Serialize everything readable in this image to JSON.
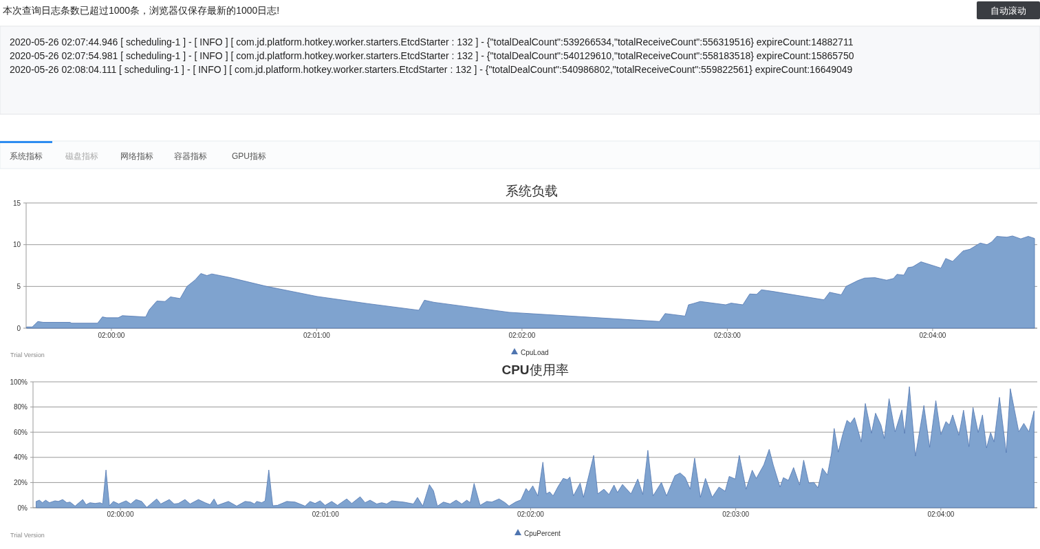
{
  "chart_data": [
    {
      "type": "other",
      "title": "本次查询日志条数已超过1000条，浏览器仅保存最新的1000日志!",
      "annotations": [
        "2020-05-26 02:07:44.946 [ scheduling-1 ] - [ INFO ] [ com.jd.platform.hotkey.worker.starters.EtcdStarter : 132 ] - {\"totalDealCount\":539266534,\"totalReceiveCount\":556319516} expireCount:14882711",
        "2020-05-26 02:07:54.981 [ scheduling-1 ] - [ INFO ] [ com.jd.platform.hotkey.worker.starters.EtcdStarter : 132 ] - {\"totalDealCount\":540129610,\"totalReceiveCount\":558183518} expireCount:15865750",
        "2020-05-26 02:08:04.111 [ scheduling-1 ] - [ INFO ] [ com.jd.platform.hotkey.worker.starters.EtcdStarter : 132 ] - {\"totalDealCount\":540986802,\"totalReceiveCount\":559822561} expireCount:16649049",
        "自动滚动",
        "系统指标",
        "磁盘指标",
        "网络指标",
        "容器指标",
        "GPU指标"
      ]
    },
    {
      "type": "area",
      "title": "系统负载",
      "x": [
        1.99312,
        1.99358,
        1.99403,
        1.99447,
        1.99665,
        1.99676,
        1.99888,
        1.99927,
        1.99961,
        2.00056,
        2.00089,
        2.00262,
        2.00279,
        2.00307,
        2.00369,
        2.00436,
        2.0048,
        2.00558,
        2.00614,
        2.00681,
        2.00726,
        2.00776,
        2.00815,
        2.00966,
        2.01262,
        2.0167,
        2.02077,
        2.02496,
        2.02541,
        2.02619,
        2.03228,
        2.0445,
        2.04495,
        2.04657,
        2.04685,
        2.04724,
        2.0478,
        2.04987,
        2.05031,
        2.05126,
        2.05182,
        2.05238,
        2.05277,
        2.05372,
        2.05785,
        2.0583,
        2.05925,
        2.05964,
        2.06059,
        2.06114,
        2.06198,
        2.06293,
        2.06349,
        2.06377,
        2.06433,
        2.06466,
        2.06505,
        2.06572,
        2.06734,
        2.06773,
        2.06829,
        2.06913,
        2.06969,
        2.07053,
        2.07108,
        2.07148,
        2.07187,
        2.0727,
        2.07315,
        2.07382,
        2.07443,
        2.07494
      ],
      "series": [
        {
          "name": "CpuLoad",
          "color": "#7fa3cf",
          "values": [
            0.15,
            0.15,
            0.8,
            0.7,
            0.7,
            0.6,
            0.6,
            1.35,
            1.25,
            1.25,
            1.5,
            1.35,
            1.35,
            2.2,
            3.25,
            3.2,
            3.75,
            3.55,
            5.0,
            5.8,
            6.55,
            6.3,
            6.5,
            6.05,
            5.0,
            3.8,
            2.95,
            2.15,
            3.35,
            3.1,
            1.9,
            0.8,
            1.75,
            1.45,
            2.8,
            2.95,
            3.2,
            2.8,
            3.0,
            2.8,
            4.1,
            4.05,
            4.6,
            4.4,
            3.4,
            4.3,
            4.0,
            5.0,
            5.7,
            6.0,
            6.05,
            5.75,
            5.95,
            6.45,
            6.35,
            7.25,
            7.35,
            7.95,
            7.2,
            8.35,
            8.0,
            9.25,
            9.45,
            10.2,
            10.0,
            10.35,
            11.0,
            10.9,
            11.05,
            10.7,
            11.0,
            10.75
          ]
        }
      ],
      "xlim": [
        1.99308,
        2.07516
      ],
      "ylim": [
        0,
        15
      ],
      "xticks": [
        {
          "value": 2,
          "label": "02:00:00"
        },
        {
          "value": 2.016667,
          "label": "02:01:00"
        },
        {
          "value": 2.033333,
          "label": "02:02:00"
        },
        {
          "value": 2.05,
          "label": "02:03:00"
        },
        {
          "value": 2.066667,
          "label": "02:04:00"
        }
      ],
      "yticks": [
        0,
        5,
        10,
        15
      ],
      "grid": "y",
      "legend": "bottom",
      "annotations": [
        "Trial Version"
      ]
    },
    {
      "type": "area",
      "title": "**CPU**使用率",
      "x": [
        1.99315,
        1.99342,
        1.99366,
        1.99393,
        1.99423,
        1.99469,
        1.99496,
        1.99531,
        1.99564,
        1.99591,
        1.99632,
        1.99694,
        1.99721,
        1.99753,
        1.99794,
        1.99835,
        1.99856,
        1.99883,
        1.99911,
        1.99943,
        1.99986,
        2.00046,
        2.00084,
        2.00127,
        2.00173,
        2.00214,
        2.00295,
        2.00328,
        2.00398,
        2.00436,
        2.00471,
        2.00525,
        2.00566,
        2.00634,
        2.00688,
        2.00729,
        2.00761,
        2.00788,
        2.00878,
        2.00945,
        2.01013,
        2.01059,
        2.01089,
        2.01108,
        2.01149,
        2.01176,
        2.01206,
        2.01238,
        2.01276,
        2.01352,
        2.01419,
        2.01501,
        2.01541,
        2.01582,
        2.01623,
        2.01663,
        2.01717,
        2.01764,
        2.01839,
        2.0188,
        2.01948,
        2.01988,
        2.02029,
        2.02083,
        2.02124,
        2.02164,
        2.02205,
        2.02246,
        2.023,
        2.02381,
        2.02414,
        2.02457,
        2.02511,
        2.02544,
        2.02576,
        2.02625,
        2.02679,
        2.02728,
        2.02774,
        2.02815,
        2.02842,
        2.02874,
        2.02923,
        2.02977,
        2.03018,
        2.03077,
        2.03126,
        2.03158,
        2.03213,
        2.03254,
        2.03296,
        2.03318,
        2.03351,
        2.03392,
        2.03433,
        2.03461,
        2.03488,
        2.03516,
        2.03557,
        2.03598,
        2.03631,
        2.03653,
        2.03681,
        2.03736,
        2.03763,
        2.03846,
        2.03879,
        2.03929,
        2.0397,
        2.04011,
        2.04039,
        2.0408,
        2.04149,
        2.04204,
        2.04245,
        2.04286,
        2.04328,
        2.04396,
        2.04438,
        2.04506,
        2.04548,
        2.04589,
        2.0463,
        2.04666,
        2.04713,
        2.04754,
        2.04809,
        2.04864,
        2.04914,
        2.04947,
        2.04996,
        2.05029,
        2.05084,
        2.05134,
        2.05167,
        2.05228,
        2.05272,
        2.05305,
        2.0536,
        2.05387,
        2.05428,
        2.0547,
        2.05519,
        2.05552,
        2.05594,
        2.05635,
        2.05668,
        2.05704,
        2.05745,
        2.05778,
        2.058,
        2.05833,
        2.05869,
        2.05904,
        2.05932,
        2.05965,
        2.0602,
        2.06053,
        2.06103,
        2.06136,
        2.0618,
        2.06207,
        2.06246,
        2.06295,
        2.0635,
        2.06372,
        2.06411,
        2.0646,
        2.06529,
        2.06576,
        2.06626,
        2.06667,
        2.06708,
        2.06736,
        2.06763,
        2.06813,
        2.06851,
        2.06895,
        2.06928,
        2.0697,
        2.07005,
        2.07038,
        2.07071,
        2.07099,
        2.07143,
        2.07198,
        2.07231,
        2.073,
        2.07341,
        2.07382,
        2.07424
      ],
      "series": [
        {
          "name": "CpuPercent",
          "color": "#7fa3cf",
          "values": [
            5,
            6,
            4,
            6,
            4,
            5.5,
            5,
            6.5,
            4,
            4.5,
            1.3,
            6.5,
            2.4,
            4,
            3.4,
            4,
            3,
            30,
            1.6,
            5,
            3,
            5.5,
            3,
            6.5,
            5,
            0.3,
            7,
            3,
            6.5,
            3,
            3.4,
            6.5,
            3,
            6.5,
            4,
            2.4,
            7,
            1.9,
            5,
            1.3,
            5,
            4.5,
            3,
            5,
            4,
            5.5,
            30,
            1.6,
            1.9,
            5,
            4.5,
            1.3,
            5,
            3.4,
            5.5,
            1.9,
            5,
            1.9,
            7,
            3.4,
            8.7,
            4,
            6,
            3,
            4,
            3,
            5.5,
            5,
            4.5,
            3,
            8.2,
            1.3,
            18.3,
            13.5,
            1.3,
            4.5,
            3,
            6,
            3,
            6,
            4,
            19.3,
            1.9,
            5,
            4.5,
            7,
            4,
            1.3,
            4.6,
            6.2,
            15.3,
            12.6,
            17.4,
            9.4,
            36.2,
            11,
            12.6,
            9.4,
            16.9,
            23.3,
            22.3,
            24.4,
            9.4,
            19.6,
            8.3,
            41.6,
            11,
            14.7,
            10.5,
            18,
            12.1,
            18.5,
            11,
            22.8,
            10.5,
            45.6,
            9.4,
            20.1,
            9.4,
            25.5,
            27.6,
            24.1,
            14.7,
            39.4,
            8.3,
            23.3,
            8.3,
            16.4,
            13.1,
            24.9,
            22.8,
            41.6,
            14.7,
            29.8,
            23.3,
            34,
            46.4,
            34,
            16.4,
            23.9,
            21.7,
            31.9,
            18,
            37.8,
            19.6,
            20.1,
            15.8,
            31.4,
            26,
            43.2,
            63,
            44.2,
            58.2,
            69.4,
            67,
            71.6,
            52.3,
            82.8,
            59.2,
            75.1,
            65.7,
            55,
            86.6,
            60.3,
            77.7,
            59,
            96.2,
            41,
            81.2,
            48,
            85,
            58.2,
            68.4,
            65.7,
            73.7,
            57.6,
            77.5,
            48.5,
            79.6,
            59.8,
            73.7,
            47.5,
            59.8,
            52.3,
            87.7,
            43.7,
            94.6,
            60.3,
            67,
            60.3,
            76.9
          ]
        }
      ],
      "xlim": [
        1.9929,
        2.0745
      ],
      "ylim": [
        0,
        100
      ],
      "xticks": [
        {
          "value": 2,
          "label": "02:00:00"
        },
        {
          "value": 2.016667,
          "label": "02:01:00"
        },
        {
          "value": 2.033333,
          "label": "02:02:00"
        },
        {
          "value": 2.05,
          "label": "02:03:00"
        },
        {
          "value": 2.066667,
          "label": "02:04:00"
        }
      ],
      "yticks": [
        {
          "value": 0,
          "label": "0%"
        },
        {
          "value": 20,
          "label": "20%"
        },
        {
          "value": 40,
          "label": "40%"
        },
        {
          "value": 60,
          "label": "60%"
        },
        {
          "value": 80,
          "label": "80%"
        },
        {
          "value": 100,
          "label": "100%"
        }
      ],
      "grid": "y",
      "legend": "bottom",
      "annotations": [
        "Trial Version"
      ]
    }
  ]
}
